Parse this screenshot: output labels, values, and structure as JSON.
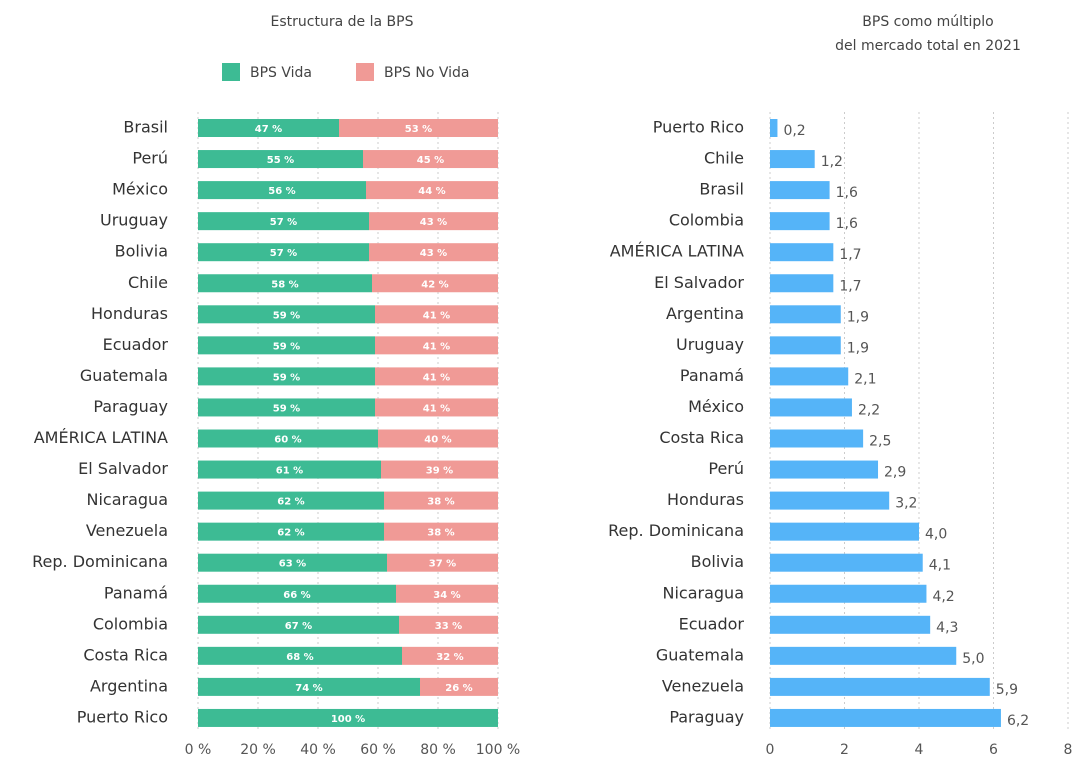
{
  "chart_data": [
    {
      "type": "stacked-bar-horizontal",
      "title": "Estructura de la BPS",
      "categories": [
        "Brasil",
        "Perú",
        "México",
        "Uruguay",
        "Bolivia",
        "Chile",
        "Honduras",
        "Ecuador",
        "Guatemala",
        "Paraguay",
        "AMÉRICA LATINA",
        "El Salvador",
        "Nicaragua",
        "Venezuela",
        "Rep. Dominicana",
        "Panamá",
        "Colombia",
        "Costa Rica",
        "Argentina",
        "Puerto Rico"
      ],
      "series": [
        {
          "name": "BPS Vida",
          "color": "#3dbb94",
          "values": [
            47,
            55,
            56,
            57,
            57,
            58,
            59,
            59,
            59,
            59,
            60,
            61,
            62,
            62,
            63,
            66,
            67,
            68,
            74,
            100
          ],
          "value_labels": [
            "47 %",
            "55 %",
            "56 %",
            "57 %",
            "57 %",
            "58 %",
            "59 %",
            "59 %",
            "59 %",
            "59 %",
            "60 %",
            "61 %",
            "62 %",
            "62 %",
            "63 %",
            "66 %",
            "67 %",
            "68 %",
            "74 %",
            "100 %"
          ]
        },
        {
          "name": "BPS No Vida",
          "color": "#f09a96",
          "values": [
            53,
            45,
            44,
            43,
            43,
            42,
            41,
            41,
            41,
            41,
            40,
            39,
            38,
            38,
            37,
            34,
            33,
            32,
            26,
            0
          ],
          "value_labels": [
            "53 %",
            "45 %",
            "44 %",
            "43 %",
            "43 %",
            "42 %",
            "41 %",
            "41 %",
            "41 %",
            "41 %",
            "40 %",
            "39 %",
            "38 %",
            "38 %",
            "37 %",
            "34 %",
            "33 %",
            "32 %",
            "26 %",
            null
          ]
        }
      ],
      "xlim": [
        0,
        100
      ],
      "xticks": [
        {
          "value": 0,
          "label": "0 %"
        },
        {
          "value": 20,
          "label": "20 %"
        },
        {
          "value": 40,
          "label": "40 %"
        },
        {
          "value": 60,
          "label": "60 %"
        },
        {
          "value": 80,
          "label": "80 %"
        },
        {
          "value": 100,
          "label": "100 %"
        }
      ],
      "grid": true,
      "legend": "top"
    },
    {
      "type": "bar-horizontal",
      "title": [
        "BPS como múltiplo",
        "del mercado total en 2021"
      ],
      "categories": [
        "Puerto Rico",
        "Chile",
        "Brasil",
        "Colombia",
        "AMÉRICA LATINA",
        "El Salvador",
        "Argentina",
        "Uruguay",
        "Panamá",
        "México",
        "Costa Rica",
        "Perú",
        "Honduras",
        "Rep. Dominicana",
        "Bolivia",
        "Nicaragua",
        "Ecuador",
        "Guatemala",
        "Venezuela",
        "Paraguay"
      ],
      "values": [
        0.2,
        1.2,
        1.6,
        1.6,
        1.7,
        1.7,
        1.9,
        1.9,
        2.1,
        2.2,
        2.5,
        2.9,
        3.2,
        4.0,
        4.1,
        4.2,
        4.3,
        5.0,
        5.9,
        6.2
      ],
      "value_labels": [
        "0,2",
        "1,2",
        "1,6",
        "1,6",
        "1,7",
        "1,7",
        "1,9",
        "1,9",
        "2,1",
        "2,2",
        "2,5",
        "2,9",
        "3,2",
        "4,0",
        "4,1",
        "4,2",
        "4,3",
        "5,0",
        "5,9",
        "6,2"
      ],
      "color": "#55b4f8",
      "xlim": [
        0,
        8
      ],
      "xticks": [
        0,
        2,
        4,
        6,
        8
      ],
      "grid": true
    }
  ]
}
